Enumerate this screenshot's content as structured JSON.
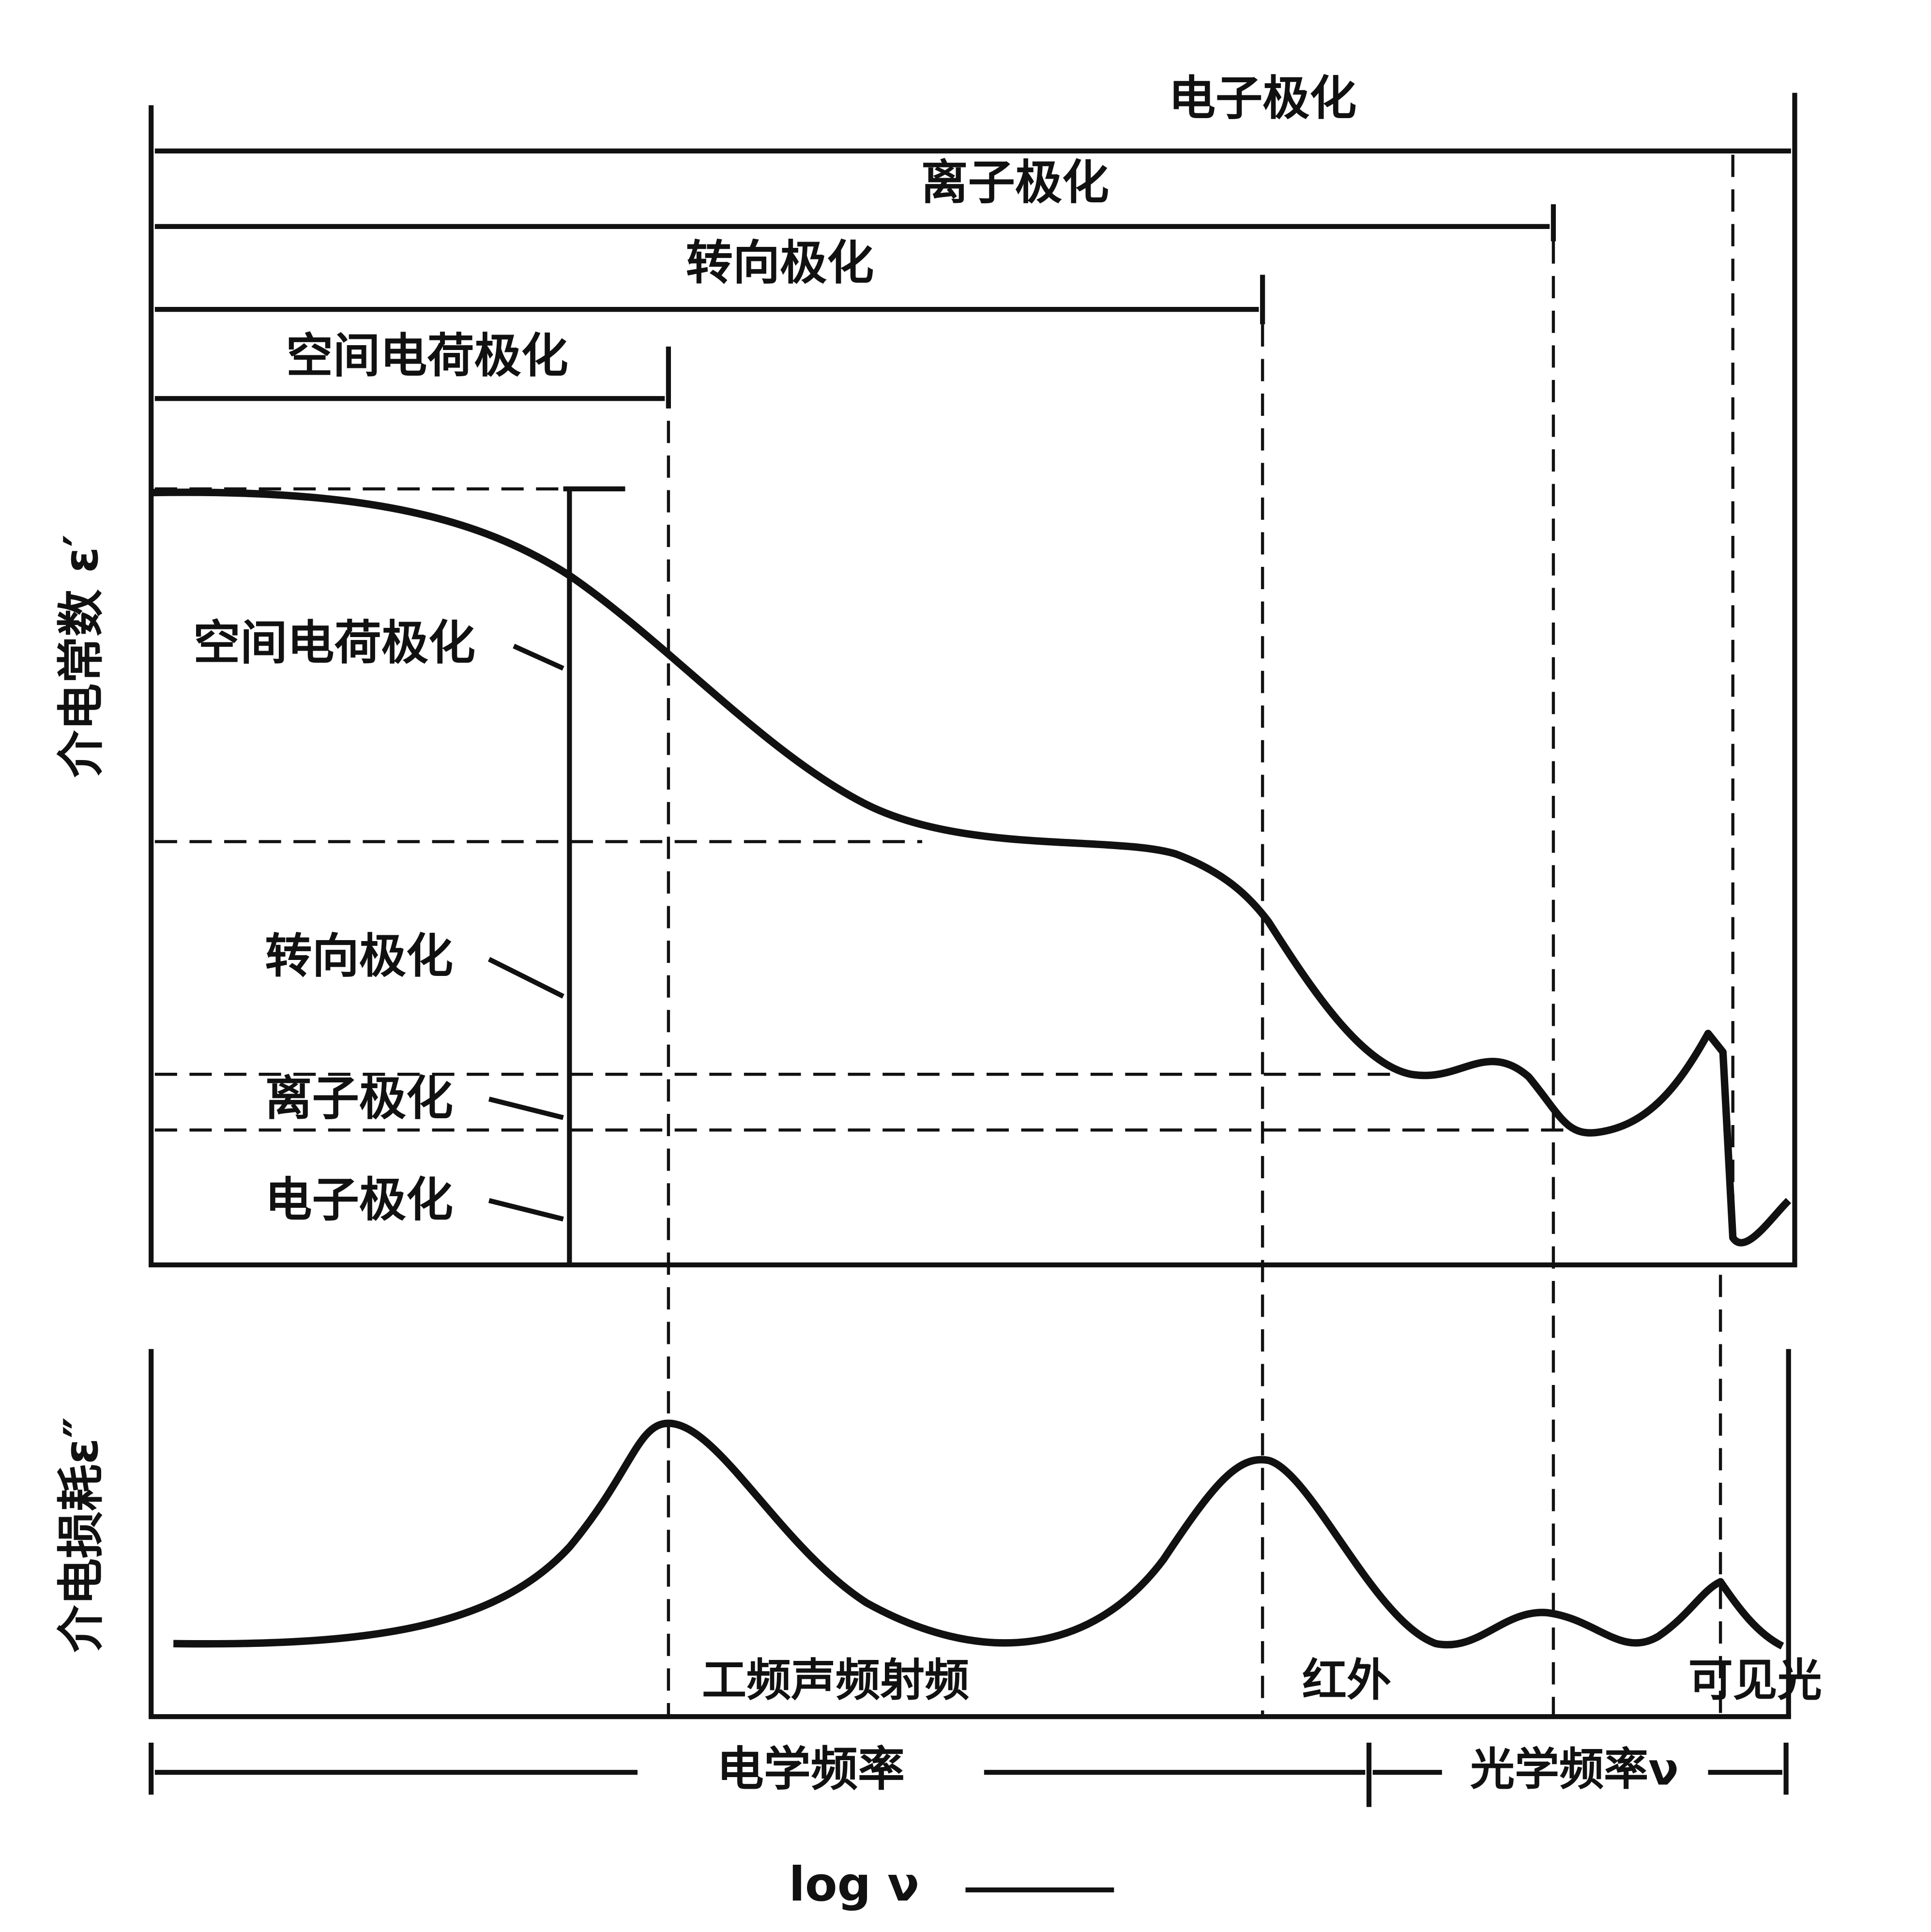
{
  "range_bars": [
    "电子极化",
    "离子极化",
    "转向极化",
    "空间电荷极化"
  ],
  "upper_axis_label": "介电常数 ε′",
  "lower_axis_label": "介电损耗ε″",
  "curve_labels": [
    "空间电荷极化",
    "转向极化",
    "离子极化",
    "电子极化"
  ],
  "bands": [
    "工频声频射频",
    "红外",
    "可见光"
  ],
  "frequency_ranges": [
    "电学频率",
    "光学频率ν"
  ],
  "x_axis_label": "log ν"
}
